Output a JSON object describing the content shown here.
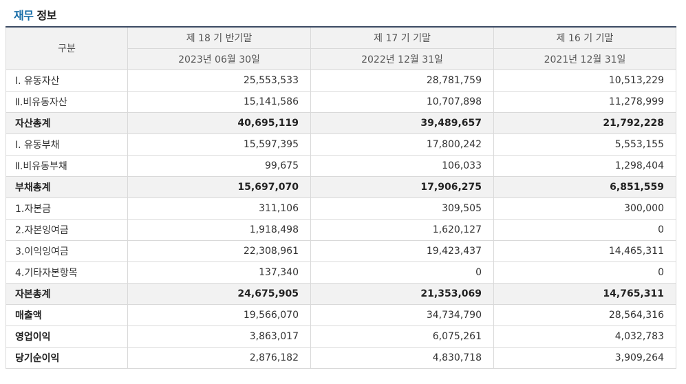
{
  "title": {
    "accent": "재무",
    "rest": "정보"
  },
  "header": {
    "category": "구분",
    "periods": [
      "제 18 기 반기말",
      "제 17 기 기말",
      "제 16 기 기말"
    ],
    "dates": [
      "2023년 06월 30일",
      "2022년 12월 31일",
      "2021년 12월 31일"
    ]
  },
  "rows": [
    {
      "label": "Ⅰ. 유동자산",
      "values": [
        "25,553,533",
        "28,781,759",
        "10,513,229"
      ],
      "style": "normal"
    },
    {
      "label": "Ⅱ.비유동자산",
      "values": [
        "15,141,586",
        "10,707,898",
        "11,278,999"
      ],
      "style": "normal"
    },
    {
      "label": "자산총계",
      "values": [
        "40,695,119",
        "39,489,657",
        "21,792,228"
      ],
      "style": "total"
    },
    {
      "label": "Ⅰ. 유동부채",
      "values": [
        "15,597,395",
        "17,800,242",
        "5,553,155"
      ],
      "style": "normal"
    },
    {
      "label": "Ⅱ.비유동부채",
      "values": [
        "99,675",
        "106,033",
        "1,298,404"
      ],
      "style": "normal"
    },
    {
      "label": "부채총계",
      "values": [
        "15,697,070",
        "17,906,275",
        "6,851,559"
      ],
      "style": "total"
    },
    {
      "label": "1.자본금",
      "values": [
        "311,106",
        "309,505",
        "300,000"
      ],
      "style": "normal"
    },
    {
      "label": "2.자본잉여금",
      "values": [
        "1,918,498",
        "1,620,127",
        "0"
      ],
      "style": "normal"
    },
    {
      "label": "3.이익잉여금",
      "values": [
        "22,308,961",
        "19,423,437",
        "14,465,311"
      ],
      "style": "normal"
    },
    {
      "label": "4.기타자본항목",
      "values": [
        "137,340",
        "0",
        "0"
      ],
      "style": "normal"
    },
    {
      "label": "자본총계",
      "values": [
        "24,675,905",
        "21,353,069",
        "14,765,311"
      ],
      "style": "total"
    },
    {
      "label": "매출액",
      "values": [
        "19,566,070",
        "34,734,790",
        "28,564,316"
      ],
      "style": "bold"
    },
    {
      "label": "영업이익",
      "values": [
        "3,863,017",
        "6,075,261",
        "4,032,783"
      ],
      "style": "bold"
    },
    {
      "label": "당기순이익",
      "values": [
        "2,876,182",
        "4,830,718",
        "3,909,264"
      ],
      "style": "bold"
    }
  ]
}
